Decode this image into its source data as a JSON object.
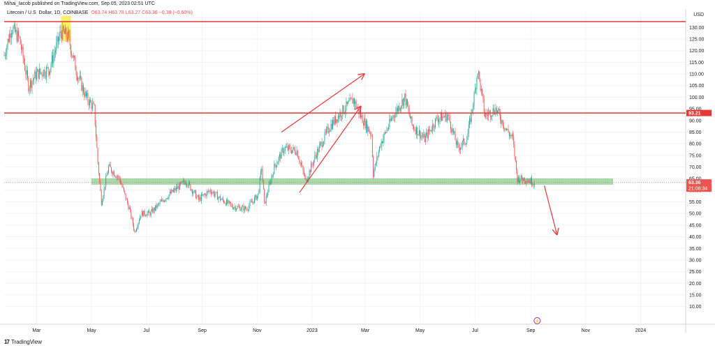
{
  "header": {
    "publisher": "Mihai_Iacob published on TradingView.com, Sep 05, 2023 02:51 UTC",
    "symbol": "Litecoin / U.S. Dollar, 1D, COINBASE",
    "ohlc": "O63.74 H63.78 L63.27 C63.36 −0.38 (−0.60%)"
  },
  "footer": {
    "brand": "TradingView"
  },
  "currency": "USD",
  "colors": {
    "up": "#26a69a",
    "down": "#ef5350",
    "resistance": "#e53935",
    "support_zone": "#66bb6a",
    "highlight": "#ffeb3b",
    "annotation": "#e53935",
    "grid": "#f0f3fa"
  },
  "chart_data": {
    "type": "candlestick",
    "y_axis": {
      "ticks": [
        10,
        15,
        20,
        25,
        30,
        35,
        40,
        45,
        50,
        55,
        60,
        65,
        70,
        75,
        80,
        85,
        90,
        95,
        100,
        105,
        110,
        115,
        120,
        125,
        130
      ],
      "tick_labels": [
        "10.00",
        "15.00",
        "20.00",
        "25.00",
        "30.00",
        "35.00",
        "40.00",
        "45.00",
        "50.00",
        "55.00",
        "60.00",
        "65.00",
        "70.00",
        "75.00",
        "80.00",
        "85.00",
        "90.00",
        "95.00",
        "100.00",
        "105.00",
        "110.00",
        "115.00",
        "120.00",
        "125.00",
        "130.00"
      ],
      "range": [
        3,
        134
      ]
    },
    "x_axis": {
      "tick_labels": [
        "Mar",
        "May",
        "Jul",
        "Sep",
        "Nov",
        "2023",
        "Mar",
        "May",
        "Jul",
        "Sep",
        "Nov",
        "2024"
      ],
      "tick_dates": [
        "2022-03-01",
        "2022-05-01",
        "2022-07-01",
        "2022-09-01",
        "2022-11-01",
        "2023-01-01",
        "2023-03-01",
        "2023-05-01",
        "2023-07-01",
        "2023-09-01",
        "2023-11-01",
        "2024-01-01"
      ],
      "range": [
        "2022-01-24",
        "2024-02-20"
      ]
    },
    "price_path": [
      [
        "2022-01-24",
        118
      ],
      [
        "2022-02-01",
        130
      ],
      [
        "2022-02-10",
        125
      ],
      [
        "2022-02-20",
        105
      ],
      [
        "2022-03-01",
        110
      ],
      [
        "2022-03-15",
        112
      ],
      [
        "2022-03-28",
        128
      ],
      [
        "2022-04-05",
        126
      ],
      [
        "2022-04-15",
        110
      ],
      [
        "2022-04-25",
        100
      ],
      [
        "2022-05-04",
        95
      ],
      [
        "2022-05-08",
        72
      ],
      [
        "2022-05-12",
        55
      ],
      [
        "2022-05-20",
        70
      ],
      [
        "2022-06-01",
        65
      ],
      [
        "2022-06-12",
        52
      ],
      [
        "2022-06-18",
        42
      ],
      [
        "2022-06-25",
        50
      ],
      [
        "2022-07-05",
        50
      ],
      [
        "2022-07-20",
        56
      ],
      [
        "2022-08-01",
        60
      ],
      [
        "2022-08-14",
        64
      ],
      [
        "2022-08-28",
        56
      ],
      [
        "2022-09-10",
        60
      ],
      [
        "2022-09-22",
        56
      ],
      [
        "2022-10-05",
        53
      ],
      [
        "2022-10-20",
        52
      ],
      [
        "2022-11-02",
        58
      ],
      [
        "2022-11-06",
        70
      ],
      [
        "2022-11-09",
        54
      ],
      [
        "2022-11-20",
        70
      ],
      [
        "2022-12-01",
        78
      ],
      [
        "2022-12-15",
        77
      ],
      [
        "2022-12-25",
        64
      ],
      [
        "2023-01-05",
        75
      ],
      [
        "2023-01-20",
        87
      ],
      [
        "2023-02-01",
        93
      ],
      [
        "2023-02-16",
        99
      ],
      [
        "2023-02-24",
        92
      ],
      [
        "2023-03-08",
        84
      ],
      [
        "2023-03-10",
        67
      ],
      [
        "2023-03-18",
        80
      ],
      [
        "2023-04-01",
        92
      ],
      [
        "2023-04-14",
        100
      ],
      [
        "2023-04-22",
        88
      ],
      [
        "2023-05-06",
        82
      ],
      [
        "2023-05-20",
        91
      ],
      [
        "2023-06-01",
        92
      ],
      [
        "2023-06-12",
        78
      ],
      [
        "2023-06-22",
        82
      ],
      [
        "2023-06-30",
        100
      ],
      [
        "2023-07-04",
        112
      ],
      [
        "2023-07-12",
        92
      ],
      [
        "2023-07-24",
        95
      ],
      [
        "2023-08-05",
        86
      ],
      [
        "2023-08-12",
        82
      ],
      [
        "2023-08-17",
        65
      ],
      [
        "2023-08-25",
        65
      ],
      [
        "2023-09-05",
        63.36
      ]
    ],
    "resistance_lines": [
      132.5,
      93.21
    ],
    "support_zone": [
      62.5,
      65.0
    ],
    "highlight_box": {
      "from": "2022-03-28",
      "to": "2022-04-08",
      "low": 124,
      "high": 135
    },
    "projection_arrow": {
      "from": [
        "2023-09-16",
        62
      ],
      "to": [
        "2023-09-30",
        41
      ]
    },
    "channel_arrows": [
      {
        "from": [
          "2022-12-18",
          59
        ],
        "to": [
          "2023-02-24",
          96
        ]
      },
      {
        "from": [
          "2022-11-28",
          85
        ],
        "to": [
          "2023-02-28",
          110
        ]
      }
    ],
    "price_labels": [
      {
        "value": 93.21,
        "text": "93.21",
        "color": "#e53935"
      },
      {
        "value": 63.36,
        "text": "63.36",
        "color": "#ef5350",
        "sub": "21:08:34"
      }
    ],
    "grid": true,
    "legend": "none"
  }
}
